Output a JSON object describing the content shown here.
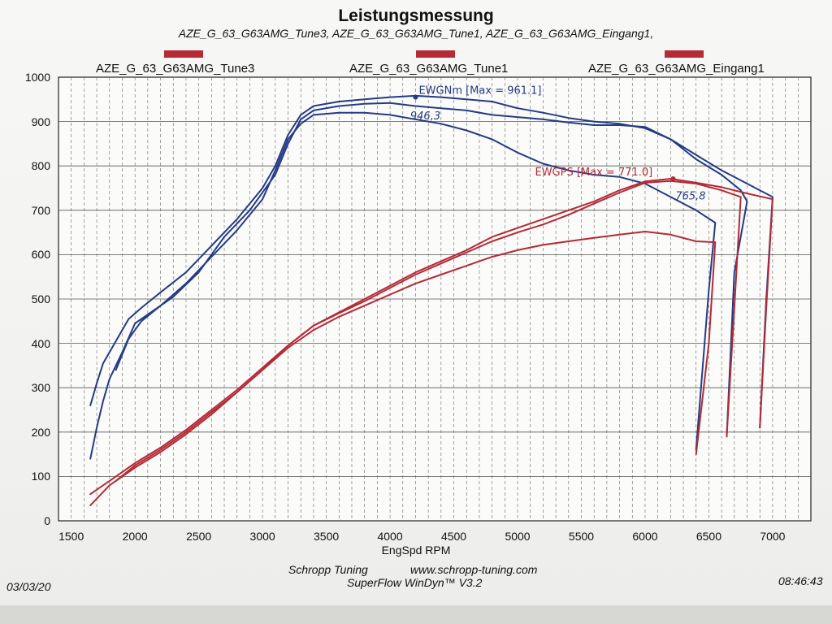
{
  "title": "Leistungsmessung",
  "subtitle": "AZE_G_63_G63AMG_Tune3, AZE_G_63_G63AMG_Tune1, AZE_G_63_G63AMG_Eingang1,",
  "legend": [
    {
      "label": "AZE_G_63_G63AMG_Tune3",
      "color": "#b52a35"
    },
    {
      "label": "AZE_G_63_G63AMG_Tune1",
      "color": "#b52a35"
    },
    {
      "label": "AZE_G_63_G63AMG_Eingang1",
      "color": "#b52a35"
    }
  ],
  "footer": {
    "company": "Schropp Tuning",
    "url": "www.schropp-tuning.com",
    "software": "SuperFlow WinDyn™ V3.2",
    "date": "03/03/20",
    "time": "08:46:43"
  },
  "colors": {
    "torque": "#243b86",
    "power": "#b52a35",
    "grid": "#666666"
  },
  "chart_data": {
    "type": "line",
    "xlabel": "EngSpd RPM",
    "ylabel": "",
    "xlim": [
      1400,
      7300
    ],
    "ylim": [
      0,
      1000
    ],
    "x_ticks": [
      1500,
      2000,
      2500,
      3000,
      3500,
      4000,
      4500,
      5000,
      5500,
      6000,
      6500,
      7000
    ],
    "y_ticks": [
      0,
      100,
      200,
      300,
      400,
      500,
      600,
      700,
      800,
      900,
      1000
    ],
    "grid": true,
    "series": [
      {
        "group": "torque",
        "points": [
          [
            1650,
            260
          ],
          [
            1700,
            310
          ],
          [
            1750,
            355
          ],
          [
            1850,
            405
          ],
          [
            1950,
            455
          ],
          [
            2050,
            480
          ],
          [
            2200,
            515
          ],
          [
            2400,
            560
          ],
          [
            2600,
            620
          ],
          [
            2800,
            680
          ],
          [
            3000,
            750
          ],
          [
            3100,
            800
          ],
          [
            3200,
            870
          ],
          [
            3300,
            915
          ],
          [
            3400,
            935
          ],
          [
            3600,
            945
          ],
          [
            3800,
            950
          ],
          [
            4000,
            955
          ],
          [
            4200,
            958
          ],
          [
            4400,
            955
          ],
          [
            4600,
            950
          ],
          [
            4800,
            945
          ],
          [
            5000,
            930
          ],
          [
            5200,
            920
          ],
          [
            5400,
            908
          ],
          [
            5600,
            900
          ],
          [
            5800,
            895
          ],
          [
            6000,
            885
          ],
          [
            6200,
            860
          ],
          [
            6400,
            815
          ],
          [
            6600,
            780
          ],
          [
            6750,
            745
          ],
          [
            6800,
            720
          ],
          [
            6700,
            560
          ],
          [
            6640,
            190
          ]
        ]
      },
      {
        "group": "torque",
        "points": [
          [
            1650,
            140
          ],
          [
            1700,
            210
          ],
          [
            1750,
            270
          ],
          [
            1800,
            320
          ],
          [
            1900,
            380
          ],
          [
            2000,
            445
          ],
          [
            2100,
            465
          ],
          [
            2300,
            505
          ],
          [
            2500,
            560
          ],
          [
            2700,
            640
          ],
          [
            2900,
            700
          ],
          [
            3100,
            780
          ],
          [
            3200,
            850
          ],
          [
            3300,
            905
          ],
          [
            3400,
            925
          ],
          [
            3600,
            935
          ],
          [
            3800,
            940
          ],
          [
            4000,
            942
          ],
          [
            4200,
            935
          ],
          [
            4400,
            930
          ],
          [
            4600,
            925
          ],
          [
            4800,
            915
          ],
          [
            5000,
            910
          ],
          [
            5200,
            905
          ],
          [
            5400,
            898
          ],
          [
            5600,
            892
          ],
          [
            5800,
            892
          ],
          [
            6000,
            888
          ],
          [
            6200,
            860
          ],
          [
            6400,
            825
          ],
          [
            6600,
            790
          ],
          [
            6800,
            760
          ],
          [
            6900,
            745
          ],
          [
            7000,
            730
          ],
          [
            6950,
            500
          ],
          [
            6900,
            210
          ]
        ]
      },
      {
        "group": "torque",
        "points": [
          [
            1850,
            340
          ],
          [
            1950,
            410
          ],
          [
            2050,
            450
          ],
          [
            2200,
            485
          ],
          [
            2400,
            535
          ],
          [
            2600,
            595
          ],
          [
            2800,
            655
          ],
          [
            3000,
            725
          ],
          [
            3100,
            790
          ],
          [
            3200,
            860
          ],
          [
            3300,
            895
          ],
          [
            3400,
            915
          ],
          [
            3600,
            920
          ],
          [
            3800,
            920
          ],
          [
            4000,
            915
          ],
          [
            4200,
            905
          ],
          [
            4400,
            895
          ],
          [
            4600,
            880
          ],
          [
            4800,
            860
          ],
          [
            5000,
            830
          ],
          [
            5200,
            805
          ],
          [
            5400,
            790
          ],
          [
            5600,
            780
          ],
          [
            5800,
            775
          ],
          [
            6000,
            760
          ],
          [
            6200,
            730
          ],
          [
            6400,
            700
          ],
          [
            6550,
            672
          ],
          [
            6500,
            520
          ],
          [
            6400,
            160
          ]
        ]
      },
      {
        "group": "power",
        "points": [
          [
            1650,
            60
          ],
          [
            1800,
            90
          ],
          [
            2000,
            130
          ],
          [
            2200,
            165
          ],
          [
            2400,
            205
          ],
          [
            2600,
            250
          ],
          [
            2800,
            295
          ],
          [
            3000,
            345
          ],
          [
            3200,
            395
          ],
          [
            3400,
            440
          ],
          [
            3600,
            470
          ],
          [
            3800,
            500
          ],
          [
            4000,
            530
          ],
          [
            4200,
            560
          ],
          [
            4400,
            585
          ],
          [
            4600,
            610
          ],
          [
            4800,
            640
          ],
          [
            5000,
            660
          ],
          [
            5200,
            680
          ],
          [
            5400,
            700
          ],
          [
            5600,
            720
          ],
          [
            5800,
            745
          ],
          [
            6000,
            765
          ],
          [
            6200,
            771
          ],
          [
            6400,
            762
          ],
          [
            6600,
            752
          ],
          [
            6800,
            738
          ],
          [
            7000,
            725
          ],
          [
            6950,
            480
          ],
          [
            6900,
            210
          ]
        ]
      },
      {
        "group": "power",
        "points": [
          [
            1650,
            35
          ],
          [
            1800,
            80
          ],
          [
            2000,
            120
          ],
          [
            2200,
            155
          ],
          [
            2400,
            195
          ],
          [
            2600,
            240
          ],
          [
            2800,
            290
          ],
          [
            3000,
            340
          ],
          [
            3200,
            395
          ],
          [
            3400,
            440
          ],
          [
            3600,
            468
          ],
          [
            3800,
            495
          ],
          [
            4000,
            525
          ],
          [
            4200,
            555
          ],
          [
            4400,
            580
          ],
          [
            4600,
            605
          ],
          [
            4800,
            630
          ],
          [
            5000,
            650
          ],
          [
            5200,
            668
          ],
          [
            5400,
            690
          ],
          [
            5600,
            715
          ],
          [
            5800,
            740
          ],
          [
            6000,
            762
          ],
          [
            6200,
            766
          ],
          [
            6400,
            760
          ],
          [
            6600,
            745
          ],
          [
            6750,
            730
          ],
          [
            6700,
            480
          ],
          [
            6640,
            190
          ]
        ]
      },
      {
        "group": "power",
        "points": [
          [
            1850,
            90
          ],
          [
            2000,
            125
          ],
          [
            2200,
            160
          ],
          [
            2400,
            200
          ],
          [
            2600,
            245
          ],
          [
            2800,
            290
          ],
          [
            3000,
            340
          ],
          [
            3200,
            390
          ],
          [
            3400,
            430
          ],
          [
            3600,
            460
          ],
          [
            3800,
            485
          ],
          [
            4000,
            510
          ],
          [
            4200,
            535
          ],
          [
            4400,
            555
          ],
          [
            4600,
            575
          ],
          [
            4800,
            595
          ],
          [
            5000,
            610
          ],
          [
            5200,
            622
          ],
          [
            5400,
            630
          ],
          [
            5600,
            638
          ],
          [
            5800,
            645
          ],
          [
            6000,
            652
          ],
          [
            6200,
            645
          ],
          [
            6400,
            630
          ],
          [
            6550,
            628
          ],
          [
            6500,
            400
          ],
          [
            6400,
            150
          ]
        ]
      }
    ],
    "annotations": [
      {
        "text": "EWGNm  [Max = 961.1]",
        "color": "#243b86",
        "x": 4200,
        "y": 955,
        "anchor": "right"
      },
      {
        "text": "946,3",
        "color": "#243b86",
        "x": 4120,
        "y": 930,
        "anchor": "below-right",
        "style": "handwritten"
      },
      {
        "text": "EWGPS  [Max = 771.0]",
        "color": "#b52a35",
        "x": 6220,
        "y": 771,
        "anchor": "upper-left"
      },
      {
        "text": "765,8",
        "color": "#243b86",
        "x": 6200,
        "y": 750,
        "anchor": "below-right",
        "style": "handwritten"
      }
    ]
  }
}
